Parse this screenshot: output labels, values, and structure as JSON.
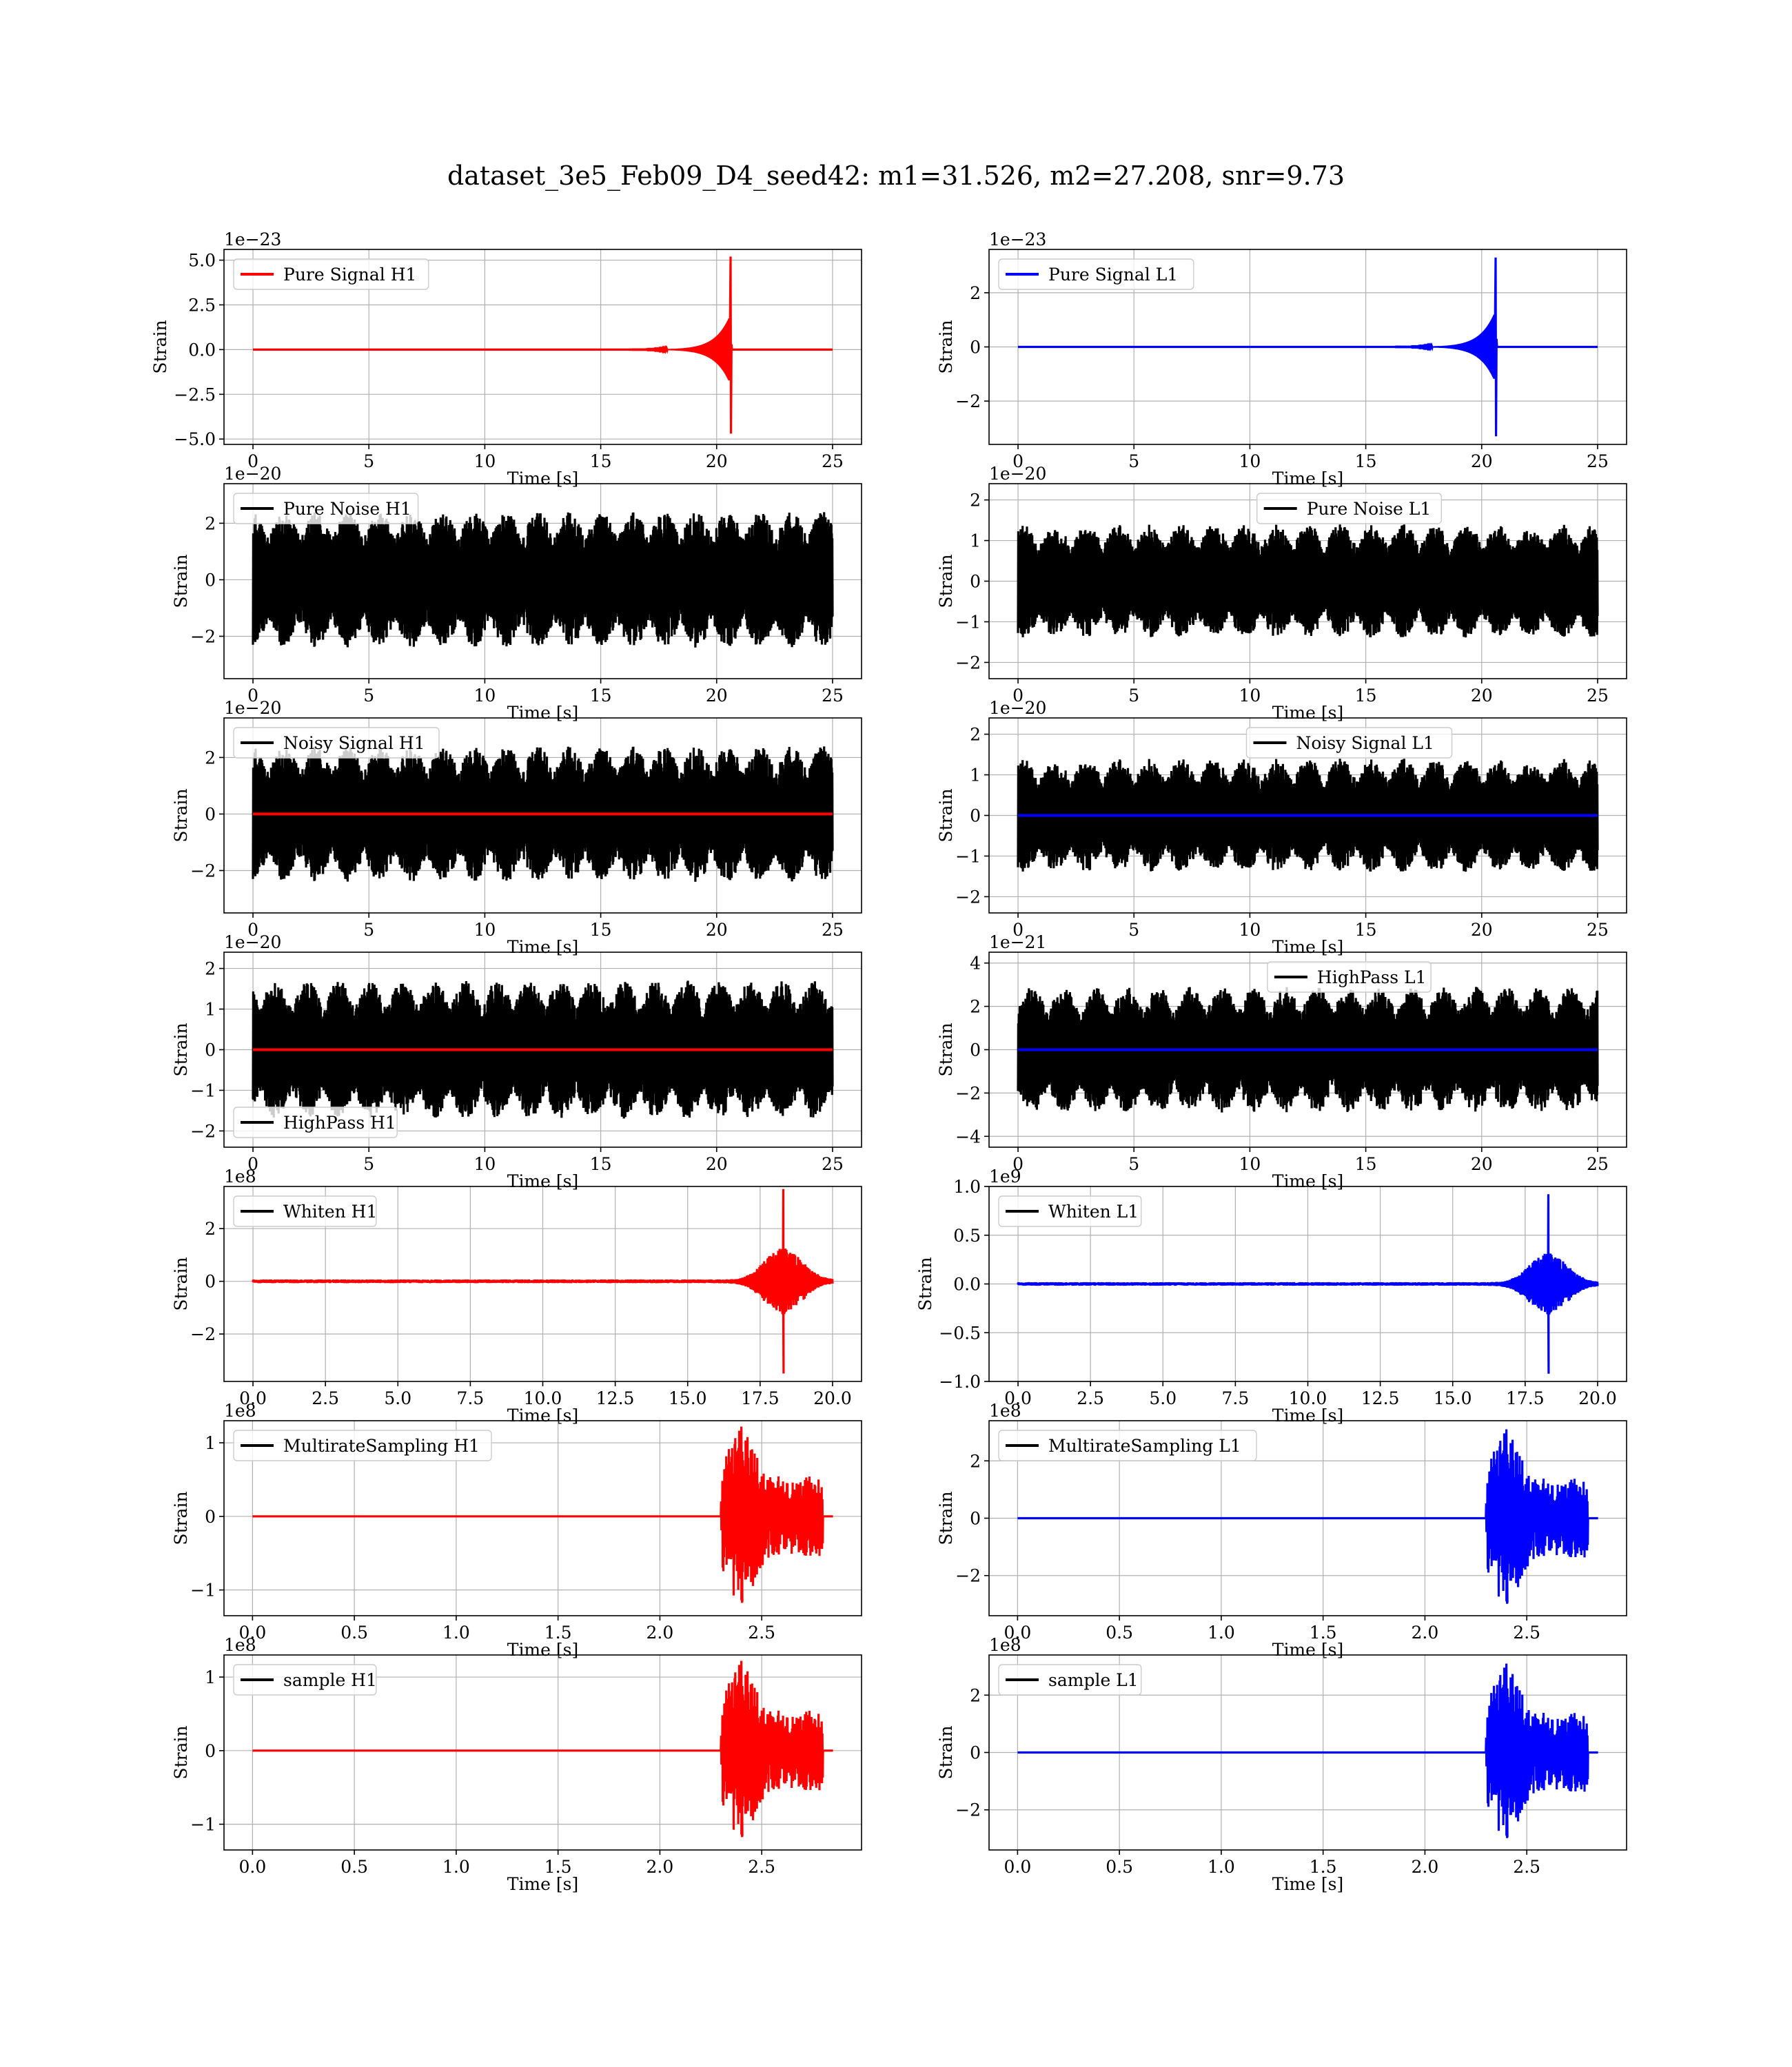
{
  "figure": {
    "title": "dataset_3e5_Feb09_D4_seed42: m1=31.526, m2=27.208, snr=9.73"
  },
  "colors": {
    "H1": "#ff0000",
    "L1": "#0000ff",
    "noise": "#000000",
    "grid": "#b0b0b0"
  },
  "chart_data": [
    {
      "type": "line",
      "row": 0,
      "col": 0,
      "offset_text": "1e−23",
      "xlabel": "Time [s]",
      "ylabel": "Strain",
      "xlim": [
        -1.25,
        26.25
      ],
      "ylim": [
        -5.3,
        5.6
      ],
      "xticks": [
        0,
        5,
        10,
        15,
        20,
        25
      ],
      "xtick_labels": [
        "0",
        "5",
        "10",
        "15",
        "20",
        "25"
      ],
      "yticks": [
        -5,
        -2.5,
        0,
        2.5,
        5
      ],
      "ytick_labels": [
        "−5.0",
        "−2.5",
        "0.0",
        "2.5",
        "5.0"
      ],
      "legend": {
        "label": "Pure Signal H1",
        "color": "#ff0000",
        "loc": "upper left"
      },
      "series": [
        {
          "name": "Pure Signal H1",
          "kind": "chirp",
          "color": "#ff0000",
          "x_range": [
            0,
            25
          ],
          "merger": 20.6,
          "peak_up": 5.2,
          "peak_down": -4.7,
          "envelope_max": 1.9
        }
      ]
    },
    {
      "type": "line",
      "row": 0,
      "col": 1,
      "offset_text": "1e−23",
      "xlabel": "Time [s]",
      "ylabel": "Strain",
      "xlim": [
        -1.25,
        26.25
      ],
      "ylim": [
        -3.6,
        3.6
      ],
      "xticks": [
        0,
        5,
        10,
        15,
        20,
        25
      ],
      "xtick_labels": [
        "0",
        "5",
        "10",
        "15",
        "20",
        "25"
      ],
      "yticks": [
        -2,
        0,
        2
      ],
      "ytick_labels": [
        "−2",
        "0",
        "2"
      ],
      "legend": {
        "label": "Pure Signal L1",
        "color": "#0000ff",
        "loc": "upper left"
      },
      "series": [
        {
          "name": "Pure Signal L1",
          "kind": "chirp",
          "color": "#0000ff",
          "x_range": [
            0,
            25
          ],
          "merger": 20.6,
          "peak_up": 3.3,
          "peak_down": -3.3,
          "envelope_max": 1.3
        }
      ]
    },
    {
      "type": "line",
      "row": 1,
      "col": 0,
      "offset_text": "1e−20",
      "xlabel": "Time [s]",
      "ylabel": "Strain",
      "xlim": [
        -1.25,
        26.25
      ],
      "ylim": [
        -3.5,
        3.4
      ],
      "xticks": [
        0,
        5,
        10,
        15,
        20,
        25
      ],
      "xtick_labels": [
        "0",
        "5",
        "10",
        "15",
        "20",
        "25"
      ],
      "yticks": [
        -2,
        0,
        2
      ],
      "ytick_labels": [
        "−2",
        "0",
        "2"
      ],
      "legend": {
        "label": "Pure Noise H1",
        "color": "#000000",
        "loc": "upper left"
      },
      "series": [
        {
          "name": "Pure Noise H1",
          "kind": "noise",
          "color": "#000000",
          "x_range": [
            0,
            25
          ],
          "amplitude": 2.4,
          "seed": 11
        }
      ]
    },
    {
      "type": "line",
      "row": 1,
      "col": 1,
      "offset_text": "1e−20",
      "xlabel": "Time [s]",
      "ylabel": "Strain",
      "xlim": [
        -1.25,
        26.25
      ],
      "ylim": [
        -2.4,
        2.4
      ],
      "xticks": [
        0,
        5,
        10,
        15,
        20,
        25
      ],
      "xtick_labels": [
        "0",
        "5",
        "10",
        "15",
        "20",
        "25"
      ],
      "yticks": [
        -2,
        -1,
        0,
        1,
        2
      ],
      "ytick_labels": [
        "−2",
        "−1",
        "0",
        "1",
        "2"
      ],
      "legend": {
        "label": "Pure Noise L1",
        "color": "#000000",
        "loc": "upper center"
      },
      "series": [
        {
          "name": "Pure Noise L1",
          "kind": "noise",
          "color": "#000000",
          "x_range": [
            0,
            25
          ],
          "amplitude": 1.4,
          "seed": 23
        }
      ]
    },
    {
      "type": "line",
      "row": 2,
      "col": 0,
      "offset_text": "1e−20",
      "xlabel": "Time [s]",
      "ylabel": "Strain",
      "xlim": [
        -1.25,
        26.25
      ],
      "ylim": [
        -3.5,
        3.4
      ],
      "xticks": [
        0,
        5,
        10,
        15,
        20,
        25
      ],
      "xtick_labels": [
        "0",
        "5",
        "10",
        "15",
        "20",
        "25"
      ],
      "yticks": [
        -2,
        0,
        2
      ],
      "ytick_labels": [
        "−2",
        "0",
        "2"
      ],
      "legend": {
        "label": "Noisy Signal H1",
        "color": "#000000",
        "loc": "upper left"
      },
      "series": [
        {
          "name": "Noisy Signal H1",
          "kind": "noise",
          "color": "#000000",
          "x_range": [
            0,
            25
          ],
          "amplitude": 2.4,
          "seed": 11
        },
        {
          "kind": "flat",
          "color": "#ff0000",
          "x_range": [
            0,
            25
          ],
          "value": 0
        }
      ]
    },
    {
      "type": "line",
      "row": 2,
      "col": 1,
      "offset_text": "1e−20",
      "xlabel": "Time [s]",
      "ylabel": "Strain",
      "xlim": [
        -1.25,
        26.25
      ],
      "ylim": [
        -2.4,
        2.4
      ],
      "xticks": [
        0,
        5,
        10,
        15,
        20,
        25
      ],
      "xtick_labels": [
        "0",
        "5",
        "10",
        "15",
        "20",
        "25"
      ],
      "yticks": [
        -2,
        -1,
        0,
        1,
        2
      ],
      "ytick_labels": [
        "−2",
        "−1",
        "0",
        "1",
        "2"
      ],
      "legend": {
        "label": "Noisy Signal L1",
        "color": "#000000",
        "loc": "upper center"
      },
      "series": [
        {
          "name": "Noisy Signal L1",
          "kind": "noise",
          "color": "#000000",
          "x_range": [
            0,
            25
          ],
          "amplitude": 1.4,
          "seed": 23
        },
        {
          "kind": "flat",
          "color": "#0000ff",
          "x_range": [
            0,
            25
          ],
          "value": 0
        }
      ]
    },
    {
      "type": "line",
      "row": 3,
      "col": 0,
      "offset_text": "1e−20",
      "xlabel": "Time [s]",
      "ylabel": "Strain",
      "xlim": [
        -1.25,
        26.25
      ],
      "ylim": [
        -2.4,
        2.4
      ],
      "xticks": [
        0,
        5,
        10,
        15,
        20,
        25
      ],
      "xtick_labels": [
        "0",
        "5",
        "10",
        "15",
        "20",
        "25"
      ],
      "yticks": [
        -2,
        -1,
        0,
        1,
        2
      ],
      "ytick_labels": [
        "−2",
        "−1",
        "0",
        "1",
        "2"
      ],
      "legend": {
        "label": "HighPass H1",
        "color": "#000000",
        "loc": "lower left"
      },
      "series": [
        {
          "name": "HighPass H1",
          "kind": "noise",
          "color": "#000000",
          "x_range": [
            0,
            25
          ],
          "amplitude": 1.7,
          "seed": 37
        },
        {
          "kind": "flat",
          "color": "#ff0000",
          "x_range": [
            0,
            25
          ],
          "value": 0
        }
      ]
    },
    {
      "type": "line",
      "row": 3,
      "col": 1,
      "offset_text": "1e−21",
      "xlabel": "Time [s]",
      "ylabel": "Strain",
      "xlim": [
        -1.25,
        26.25
      ],
      "ylim": [
        -4.5,
        4.5
      ],
      "xticks": [
        0,
        5,
        10,
        15,
        20,
        25
      ],
      "xtick_labels": [
        "0",
        "5",
        "10",
        "15",
        "20",
        "25"
      ],
      "yticks": [
        -4,
        -2,
        0,
        2,
        4
      ],
      "ytick_labels": [
        "−4",
        "−2",
        "0",
        "2",
        "4"
      ],
      "legend": {
        "label": "HighPass L1",
        "color": "#000000",
        "loc": "upper center"
      },
      "series": [
        {
          "name": "HighPass L1",
          "kind": "noise",
          "color": "#000000",
          "x_range": [
            0,
            25
          ],
          "amplitude": 2.9,
          "seed": 41
        },
        {
          "kind": "flat",
          "color": "#0000ff",
          "x_range": [
            0,
            25
          ],
          "value": 0
        }
      ]
    },
    {
      "type": "line",
      "row": 4,
      "col": 0,
      "offset_text": "1e8",
      "xlabel": "Time [s]",
      "ylabel": "Strain",
      "xlim": [
        -1,
        21
      ],
      "ylim": [
        -3.8,
        3.6
      ],
      "xticks": [
        0,
        2.5,
        5,
        7.5,
        10,
        12.5,
        15,
        17.5,
        20
      ],
      "xtick_labels": [
        "0.0",
        "2.5",
        "5.0",
        "7.5",
        "10.0",
        "12.5",
        "15.0",
        "17.5",
        "20.0"
      ],
      "yticks": [
        -2,
        0,
        2
      ],
      "ytick_labels": [
        "−2",
        "0",
        "2"
      ],
      "legend": {
        "label": "Whiten H1",
        "color": "#000000",
        "loc": "upper left"
      },
      "series": [
        {
          "name": "Whiten H1",
          "kind": "whiten",
          "color": "#ff0000",
          "x_range": [
            0,
            20
          ],
          "spike_x": 18.3,
          "spike_up": 3.5,
          "spike_down": -3.5,
          "burst_max": 1.2
        }
      ]
    },
    {
      "type": "line",
      "row": 4,
      "col": 1,
      "offset_text": "1e9",
      "xlabel": "Time [s]",
      "ylabel": "Strain",
      "xlim": [
        -1,
        21
      ],
      "ylim": [
        -1.0,
        1.0
      ],
      "xticks": [
        0,
        2.5,
        5,
        7.5,
        10,
        12.5,
        15,
        17.5,
        20
      ],
      "xtick_labels": [
        "0.0",
        "2.5",
        "5.0",
        "7.5",
        "10.0",
        "12.5",
        "15.0",
        "17.5",
        "20.0"
      ],
      "yticks": [
        -1.0,
        -0.5,
        0,
        0.5,
        1.0
      ],
      "ytick_labels": [
        "−1.0",
        "−0.5",
        "0.0",
        "0.5",
        "1.0"
      ],
      "legend": {
        "label": "Whiten L1",
        "color": "#000000",
        "loc": "upper left"
      },
      "series": [
        {
          "name": "Whiten L1",
          "kind": "whiten",
          "color": "#0000ff",
          "x_range": [
            0,
            20
          ],
          "spike_x": 18.3,
          "spike_up": 0.92,
          "spike_down": -0.92,
          "burst_max": 0.3
        }
      ]
    },
    {
      "type": "line",
      "row": 5,
      "col": 0,
      "offset_text": "1e8",
      "xlabel": "Time [s]",
      "ylabel": "Strain",
      "xlim": [
        -0.14,
        2.99
      ],
      "ylim": [
        -1.35,
        1.3
      ],
      "xticks": [
        0,
        0.5,
        1.0,
        1.5,
        2.0,
        2.5
      ],
      "xtick_labels": [
        "0.0",
        "0.5",
        "1.0",
        "1.5",
        "2.0",
        "2.5"
      ],
      "yticks": [
        -1,
        0,
        1
      ],
      "ytick_labels": [
        "−1",
        "0",
        "1"
      ],
      "legend": {
        "label": "MultirateSampling H1",
        "color": "#000000",
        "loc": "upper left"
      },
      "series": [
        {
          "name": "MultirateSampling H1",
          "kind": "burst",
          "color": "#ff0000",
          "x_range": [
            0,
            2.85
          ],
          "burst_start": 2.3,
          "burst_end": 2.8,
          "peak_x": 2.4,
          "amplitude": 1.22
        }
      ]
    },
    {
      "type": "line",
      "row": 5,
      "col": 1,
      "offset_text": "1e8",
      "xlabel": "Time [s]",
      "ylabel": "Strain",
      "xlim": [
        -0.14,
        2.99
      ],
      "ylim": [
        -3.4,
        3.4
      ],
      "xticks": [
        0,
        0.5,
        1.0,
        1.5,
        2.0,
        2.5
      ],
      "xtick_labels": [
        "0.0",
        "0.5",
        "1.0",
        "1.5",
        "2.0",
        "2.5"
      ],
      "yticks": [
        -2,
        0,
        2
      ],
      "ytick_labels": [
        "−2",
        "0",
        "2"
      ],
      "legend": {
        "label": "MultirateSampling L1",
        "color": "#000000",
        "loc": "upper left"
      },
      "series": [
        {
          "name": "MultirateSampling L1",
          "kind": "burst",
          "color": "#0000ff",
          "x_range": [
            0,
            2.85
          ],
          "burst_start": 2.3,
          "burst_end": 2.8,
          "peak_x": 2.4,
          "amplitude": 3.1
        }
      ]
    },
    {
      "type": "line",
      "row": 6,
      "col": 0,
      "offset_text": "1e8",
      "xlabel": "Time [s]",
      "ylabel": "Strain",
      "xlim": [
        -0.14,
        2.99
      ],
      "ylim": [
        -1.35,
        1.3
      ],
      "xticks": [
        0,
        0.5,
        1.0,
        1.5,
        2.0,
        2.5
      ],
      "xtick_labels": [
        "0.0",
        "0.5",
        "1.0",
        "1.5",
        "2.0",
        "2.5"
      ],
      "yticks": [
        -1,
        0,
        1
      ],
      "ytick_labels": [
        "−1",
        "0",
        "1"
      ],
      "legend": {
        "label": "sample H1",
        "color": "#000000",
        "loc": "upper left"
      },
      "series": [
        {
          "name": "sample H1",
          "kind": "burst",
          "color": "#ff0000",
          "x_range": [
            0,
            2.85
          ],
          "burst_start": 2.3,
          "burst_end": 2.8,
          "peak_x": 2.4,
          "amplitude": 1.22
        }
      ]
    },
    {
      "type": "line",
      "row": 6,
      "col": 1,
      "offset_text": "1e8",
      "xlabel": "Time [s]",
      "ylabel": "Strain",
      "xlim": [
        -0.14,
        2.99
      ],
      "ylim": [
        -3.4,
        3.4
      ],
      "xticks": [
        0,
        0.5,
        1.0,
        1.5,
        2.0,
        2.5
      ],
      "xtick_labels": [
        "0.0",
        "0.5",
        "1.0",
        "1.5",
        "2.0",
        "2.5"
      ],
      "yticks": [
        -2,
        0,
        2
      ],
      "ytick_labels": [
        "−2",
        "0",
        "2"
      ],
      "legend": {
        "label": "sample L1",
        "color": "#000000",
        "loc": "upper left"
      },
      "series": [
        {
          "name": "sample L1",
          "kind": "burst",
          "color": "#0000ff",
          "x_range": [
            0,
            2.85
          ],
          "burst_start": 2.3,
          "burst_end": 2.8,
          "peak_x": 2.4,
          "amplitude": 3.1
        }
      ]
    }
  ]
}
